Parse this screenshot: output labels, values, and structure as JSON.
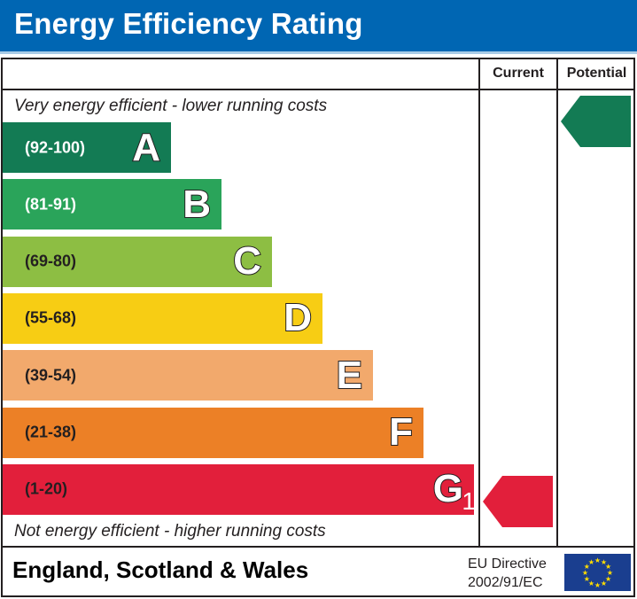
{
  "header": {
    "title": "Energy Efficiency Rating",
    "color": "#0066b3"
  },
  "columns": {
    "current": "Current",
    "potential": "Potential"
  },
  "notes": {
    "top": "Very energy efficient - lower running costs",
    "bottom": "Not energy efficient - higher running costs"
  },
  "footer": {
    "region": "England, Scotland & Wales",
    "directive_line1": "EU Directive",
    "directive_line2": "2002/91/EC",
    "flag_icon": "eu-flag-icon"
  },
  "chart_data": {
    "type": "bar",
    "title": "Energy Efficiency Rating",
    "categories": [
      "A",
      "B",
      "C",
      "D",
      "E",
      "F",
      "G"
    ],
    "bands": [
      {
        "letter": "A",
        "range": "(92-100)",
        "min": 92,
        "max": 100,
        "color": "#137b54",
        "text_color": "#ffffff"
      },
      {
        "letter": "B",
        "range": "(81-91)",
        "min": 81,
        "max": 91,
        "color": "#2aa45a",
        "text_color": "#ffffff"
      },
      {
        "letter": "C",
        "range": "(69-80)",
        "min": 69,
        "max": 80,
        "color": "#8dbe43",
        "text_color": "#231f20"
      },
      {
        "letter": "D",
        "range": "(55-68)",
        "min": 55,
        "max": 68,
        "color": "#f7cd14",
        "text_color": "#231f20"
      },
      {
        "letter": "E",
        "range": "(39-54)",
        "min": 39,
        "max": 54,
        "color": "#f2a96c",
        "text_color": "#231f20"
      },
      {
        "letter": "F",
        "range": "(21-38)",
        "min": 21,
        "max": 38,
        "color": "#ec8026",
        "text_color": "#231f20"
      },
      {
        "letter": "G",
        "range": "(1-20)",
        "min": 1,
        "max": 20,
        "color": "#e21f3b",
        "text_color": "#231f20"
      }
    ],
    "current": {
      "value": 1,
      "band": "G",
      "color": "#e21f3b"
    },
    "potential": {
      "value": 100,
      "band": "A",
      "color": "#137b54"
    }
  }
}
